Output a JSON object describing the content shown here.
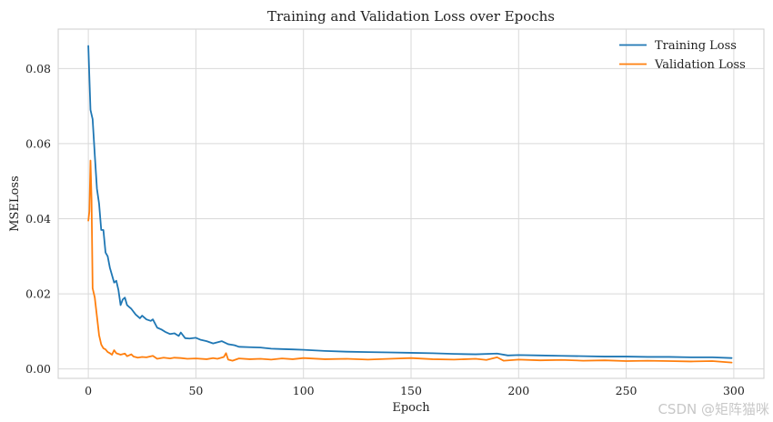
{
  "chart_data": {
    "type": "line",
    "title": "Training and Validation Loss over Epochs",
    "xlabel": "Epoch",
    "ylabel": "MSELoss",
    "xlim": [
      -14,
      314
    ],
    "ylim": [
      -0.0025,
      0.0905
    ],
    "xticks": [
      0,
      50,
      100,
      150,
      200,
      250,
      300
    ],
    "yticks": [
      0.0,
      0.02,
      0.04,
      0.06,
      0.08
    ],
    "ytick_labels": [
      "0.00",
      "0.02",
      "0.04",
      "0.06",
      "0.08"
    ],
    "grid": true,
    "legend_position": "top-right",
    "series": [
      {
        "name": "Training Loss",
        "color": "#1f77b4",
        "points": [
          [
            0,
            0.086
          ],
          [
            1,
            0.069
          ],
          [
            2,
            0.0665
          ],
          [
            3,
            0.057
          ],
          [
            4,
            0.048
          ],
          [
            5,
            0.044
          ],
          [
            6,
            0.037
          ],
          [
            7,
            0.037
          ],
          [
            8,
            0.031
          ],
          [
            9,
            0.03
          ],
          [
            10,
            0.027
          ],
          [
            11,
            0.025
          ],
          [
            12,
            0.023
          ],
          [
            13,
            0.0235
          ],
          [
            14,
            0.021
          ],
          [
            15,
            0.017
          ],
          [
            16,
            0.0185
          ],
          [
            17,
            0.019
          ],
          [
            18,
            0.017
          ],
          [
            19,
            0.0165
          ],
          [
            20,
            0.016
          ],
          [
            22,
            0.0145
          ],
          [
            24,
            0.0135
          ],
          [
            25,
            0.0142
          ],
          [
            27,
            0.0132
          ],
          [
            29,
            0.0128
          ],
          [
            30,
            0.0132
          ],
          [
            32,
            0.011
          ],
          [
            34,
            0.0105
          ],
          [
            36,
            0.0098
          ],
          [
            38,
            0.0093
          ],
          [
            40,
            0.0095
          ],
          [
            42,
            0.0088
          ],
          [
            43,
            0.0097
          ],
          [
            45,
            0.0082
          ],
          [
            47,
            0.0081
          ],
          [
            50,
            0.0083
          ],
          [
            52,
            0.0078
          ],
          [
            55,
            0.0074
          ],
          [
            58,
            0.0068
          ],
          [
            60,
            0.0071
          ],
          [
            62,
            0.0074
          ],
          [
            65,
            0.0066
          ],
          [
            68,
            0.0063
          ],
          [
            70,
            0.0059
          ],
          [
            75,
            0.0058
          ],
          [
            80,
            0.0057
          ],
          [
            85,
            0.0054
          ],
          [
            90,
            0.0053
          ],
          [
            95,
            0.0052
          ],
          [
            100,
            0.0051
          ],
          [
            110,
            0.0048
          ],
          [
            120,
            0.0046
          ],
          [
            130,
            0.0045
          ],
          [
            140,
            0.0044
          ],
          [
            150,
            0.0043
          ],
          [
            160,
            0.0042
          ],
          [
            170,
            0.004
          ],
          [
            180,
            0.0039
          ],
          [
            190,
            0.0041
          ],
          [
            195,
            0.0036
          ],
          [
            200,
            0.0037
          ],
          [
            210,
            0.0036
          ],
          [
            220,
            0.0035
          ],
          [
            230,
            0.0034
          ],
          [
            240,
            0.0033
          ],
          [
            250,
            0.0033
          ],
          [
            260,
            0.0032
          ],
          [
            270,
            0.0032
          ],
          [
            280,
            0.0031
          ],
          [
            290,
            0.0031
          ],
          [
            299,
            0.0029
          ]
        ]
      },
      {
        "name": "Validation Loss",
        "color": "#ff7f0e",
        "points": [
          [
            0,
            0.0395
          ],
          [
            0.5,
            0.042
          ],
          [
            1,
            0.0555
          ],
          [
            1.5,
            0.045
          ],
          [
            2,
            0.0215
          ],
          [
            3,
            0.019
          ],
          [
            4,
            0.014
          ],
          [
            5,
            0.009
          ],
          [
            6,
            0.0065
          ],
          [
            7,
            0.0055
          ],
          [
            8,
            0.0052
          ],
          [
            9,
            0.0045
          ],
          [
            10,
            0.0042
          ],
          [
            11,
            0.0038
          ],
          [
            12,
            0.005
          ],
          [
            13,
            0.0042
          ],
          [
            15,
            0.0038
          ],
          [
            17,
            0.0041
          ],
          [
            18,
            0.0034
          ],
          [
            20,
            0.0039
          ],
          [
            21,
            0.0033
          ],
          [
            23,
            0.003
          ],
          [
            25,
            0.0032
          ],
          [
            27,
            0.0031
          ],
          [
            30,
            0.0035
          ],
          [
            32,
            0.0027
          ],
          [
            35,
            0.003
          ],
          [
            38,
            0.0028
          ],
          [
            40,
            0.003
          ],
          [
            43,
            0.0029
          ],
          [
            46,
            0.0027
          ],
          [
            50,
            0.0028
          ],
          [
            55,
            0.0026
          ],
          [
            58,
            0.0029
          ],
          [
            60,
            0.0027
          ],
          [
            63,
            0.0032
          ],
          [
            64,
            0.0042
          ],
          [
            65,
            0.0025
          ],
          [
            67,
            0.0022
          ],
          [
            70,
            0.0028
          ],
          [
            75,
            0.0026
          ],
          [
            80,
            0.0027
          ],
          [
            85,
            0.0025
          ],
          [
            90,
            0.0028
          ],
          [
            95,
            0.0026
          ],
          [
            100,
            0.0029
          ],
          [
            110,
            0.0026
          ],
          [
            120,
            0.0027
          ],
          [
            130,
            0.0025
          ],
          [
            140,
            0.0027
          ],
          [
            150,
            0.0029
          ],
          [
            160,
            0.0026
          ],
          [
            170,
            0.0025
          ],
          [
            180,
            0.0027
          ],
          [
            185,
            0.0024
          ],
          [
            190,
            0.0031
          ],
          [
            193,
            0.0022
          ],
          [
            200,
            0.0025
          ],
          [
            210,
            0.0023
          ],
          [
            220,
            0.0024
          ],
          [
            230,
            0.0022
          ],
          [
            240,
            0.0023
          ],
          [
            250,
            0.0021
          ],
          [
            260,
            0.0022
          ],
          [
            270,
            0.0021
          ],
          [
            280,
            0.002
          ],
          [
            290,
            0.0021
          ],
          [
            299,
            0.0017
          ]
        ]
      }
    ]
  },
  "watermark": "CSDN @矩阵猫咪"
}
